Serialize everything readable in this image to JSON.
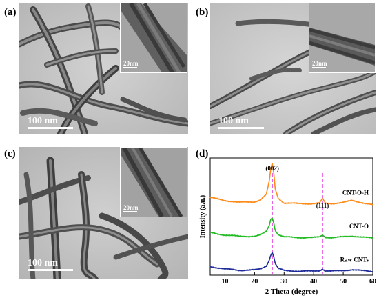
{
  "panels": {
    "a": {
      "label": "(a)",
      "scale": "100 nm",
      "inset_scale": "20nm"
    },
    "b": {
      "label": "(b)",
      "scale": "100 nm",
      "inset_scale": "20nm"
    },
    "c": {
      "label": "(c)",
      "scale": "100 nm",
      "inset_scale": "20nm"
    },
    "d": {
      "label": "(d)"
    }
  },
  "chart_data": {
    "type": "line",
    "xlabel": "2 Theta (degree)",
    "ylabel": "Intensity (a.u.)",
    "xlim": [
      5,
      60
    ],
    "xticks": [
      10,
      20,
      30,
      40,
      50,
      60
    ],
    "peak_labels": [
      {
        "text": "(002)",
        "x": 26
      },
      {
        "text": "(111)",
        "x": 43
      }
    ],
    "series": [
      {
        "name": "CNT-O-H",
        "color": "#ff8c1a",
        "offset": 2.0,
        "x": [
          5,
          10,
          15,
          20,
          22,
          24,
          25,
          25.5,
          26,
          26.5,
          27,
          28,
          30,
          35,
          40,
          42,
          43,
          44,
          46,
          50,
          53,
          56,
          60
        ],
        "y": [
          0.52,
          0.42,
          0.36,
          0.38,
          0.44,
          0.62,
          1.05,
          1.45,
          1.62,
          1.3,
          0.8,
          0.5,
          0.34,
          0.32,
          0.32,
          0.34,
          0.48,
          0.33,
          0.32,
          0.36,
          0.42,
          0.36,
          0.28
        ]
      },
      {
        "name": "CNT-O",
        "color": "#22bb22",
        "offset": 1.0,
        "x": [
          5,
          10,
          15,
          20,
          22,
          24,
          25,
          25.5,
          26,
          26.5,
          27,
          28,
          30,
          35,
          40,
          42,
          43,
          44,
          46,
          50,
          53,
          56,
          60
        ],
        "y": [
          0.38,
          0.3,
          0.26,
          0.26,
          0.3,
          0.42,
          0.62,
          0.82,
          0.86,
          0.7,
          0.46,
          0.32,
          0.24,
          0.22,
          0.22,
          0.24,
          0.3,
          0.23,
          0.22,
          0.24,
          0.27,
          0.24,
          0.2
        ]
      },
      {
        "name": "Raw CNTs",
        "color": "#1f2b99",
        "offset": 0.0,
        "x": [
          5,
          10,
          15,
          20,
          22,
          24,
          25,
          25.5,
          26,
          26.5,
          27,
          28,
          30,
          35,
          40,
          42,
          43,
          44,
          46,
          50,
          53,
          56,
          60
        ],
        "y": [
          0.28,
          0.2,
          0.16,
          0.17,
          0.2,
          0.3,
          0.5,
          0.66,
          0.74,
          0.6,
          0.38,
          0.22,
          0.15,
          0.13,
          0.13,
          0.15,
          0.2,
          0.14,
          0.13,
          0.15,
          0.18,
          0.15,
          0.12
        ]
      }
    ]
  }
}
